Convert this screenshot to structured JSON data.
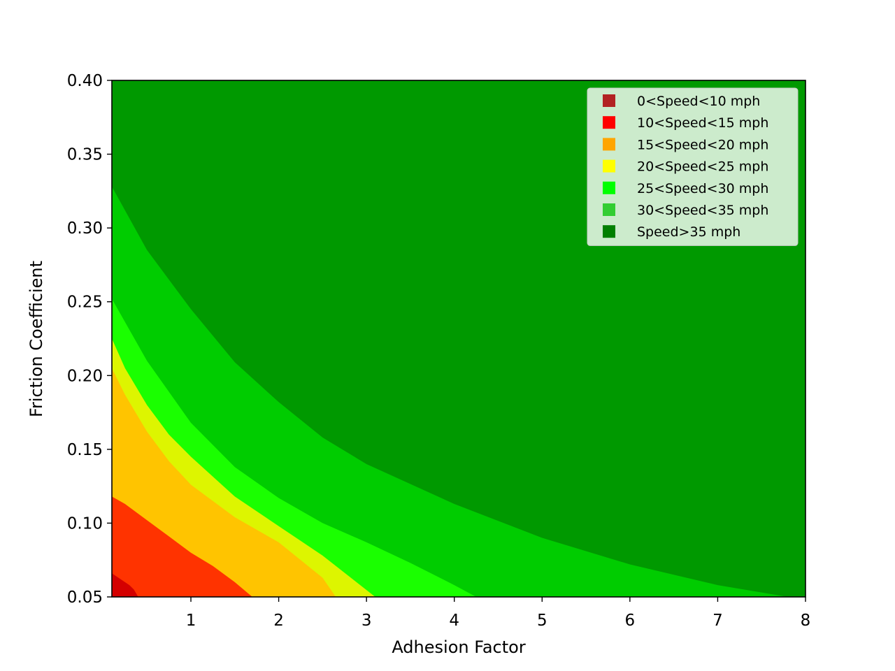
{
  "chart_data": {
    "type": "contour",
    "title": "",
    "xlabel": "Adhesion Factor",
    "ylabel": "Friction Coefficient",
    "xlim": [
      0.1,
      8
    ],
    "ylim": [
      0.05,
      0.4
    ],
    "x_ticks": [
      1,
      2,
      3,
      4,
      5,
      6,
      7,
      8
    ],
    "x_tick_labels": [
      "1",
      "2",
      "3",
      "4",
      "5",
      "6",
      "7",
      "8"
    ],
    "y_ticks": [
      0.05,
      0.1,
      0.15,
      0.2,
      0.25,
      0.3,
      0.35,
      0.4
    ],
    "y_tick_labels": [
      "0.05",
      "0.10",
      "0.15",
      "0.20",
      "0.25",
      "0.30",
      "0.35",
      "0.40"
    ],
    "grid": false,
    "legend_position": "top-right",
    "series": [
      {
        "name": "0<Speed<10 mph",
        "color": "#B22222",
        "region_color": "#D40000"
      },
      {
        "name": "10<Speed<15 mph",
        "color": "#FF0000",
        "region_color": "#FF3300"
      },
      {
        "name": "15<Speed<20 mph",
        "color": "#FFA500",
        "region_color": "#FFC400"
      },
      {
        "name": "20<Speed<25 mph",
        "color": "#FFFF00",
        "region_color": "#DDF500"
      },
      {
        "name": "25<Speed<30 mph",
        "color": "#00FF00",
        "region_color": "#1AFF00"
      },
      {
        "name": "30<Speed<35 mph",
        "color": "#32CD32",
        "region_color": "#00CC00"
      },
      {
        "name": "Speed>35 mph",
        "color": "#008000",
        "region_color": "#009900"
      }
    ],
    "boundaries": [
      {
        "between": "0<Speed<10 mph | 10<Speed<15 mph",
        "x": [
          0.1,
          0.2,
          0.3,
          0.35,
          0.4
        ],
        "y": [
          0.066,
          0.062,
          0.058,
          0.055,
          0.05
        ]
      },
      {
        "between": "10<Speed<15 mph | 15<Speed<20 mph",
        "x": [
          0.1,
          0.25,
          0.5,
          0.75,
          1.0,
          1.25,
          1.5,
          1.7
        ],
        "y": [
          0.118,
          0.113,
          0.102,
          0.091,
          0.08,
          0.071,
          0.06,
          0.05
        ]
      },
      {
        "between": "15<Speed<20 mph | 20<Speed<25 mph",
        "x": [
          0.1,
          0.25,
          0.5,
          0.75,
          1.0,
          1.5,
          2.0,
          2.5,
          2.65
        ],
        "y": [
          0.205,
          0.187,
          0.162,
          0.142,
          0.126,
          0.104,
          0.087,
          0.063,
          0.05
        ]
      },
      {
        "between": "20<Speed<25 mph | 25<Speed<30 mph",
        "x": [
          0.1,
          0.25,
          0.5,
          0.75,
          1.0,
          1.5,
          2.0,
          2.5,
          3.1
        ],
        "y": [
          0.225,
          0.205,
          0.18,
          0.16,
          0.145,
          0.118,
          0.098,
          0.078,
          0.05
        ]
      },
      {
        "between": "25<Speed<30 mph | 30<Speed<35 mph",
        "x": [
          0.1,
          0.5,
          1.0,
          1.5,
          2.0,
          2.5,
          3.0,
          3.5,
          4.0,
          4.25
        ],
        "y": [
          0.252,
          0.21,
          0.168,
          0.138,
          0.117,
          0.1,
          0.087,
          0.073,
          0.058,
          0.05
        ]
      },
      {
        "between": "30<Speed<35 mph | Speed>35 mph",
        "x": [
          0.1,
          0.5,
          1.0,
          1.5,
          2.0,
          2.5,
          3.0,
          4.0,
          5.0,
          6.0,
          7.0,
          7.8
        ],
        "y": [
          0.328,
          0.285,
          0.245,
          0.209,
          0.182,
          0.158,
          0.14,
          0.113,
          0.09,
          0.072,
          0.058,
          0.05
        ]
      }
    ]
  }
}
